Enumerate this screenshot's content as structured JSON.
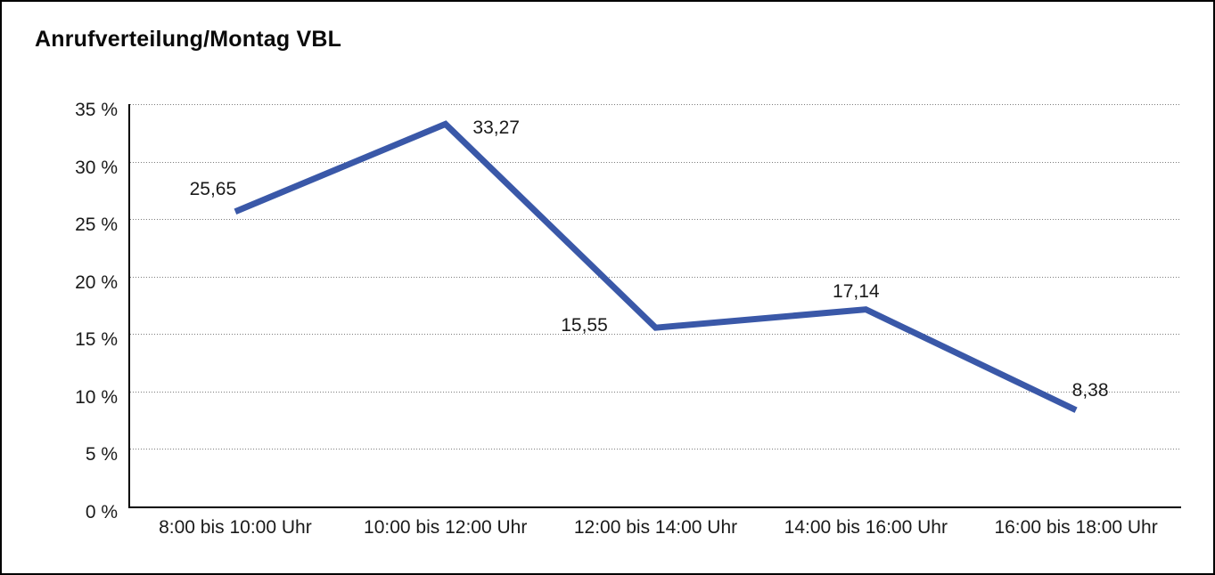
{
  "window": {
    "background_color": "#ffffff",
    "border_color": "#000000"
  },
  "chart_data": {
    "type": "line",
    "title": "Anrufverteilung/Montag VBL",
    "categories": [
      "8:00 bis 10:00 Uhr",
      "10:00 bis 12:00 Uhr",
      "12:00 bis 14:00 Uhr",
      "14:00 bis 16:00 Uhr",
      "16:00 bis 18:00 Uhr"
    ],
    "values": [
      25.65,
      33.27,
      15.55,
      17.14,
      8.38
    ],
    "data_labels": [
      "25,65",
      "33,27",
      "15,55",
      "17,14",
      "8,38"
    ],
    "y_tick_values": [
      0,
      5,
      10,
      15,
      20,
      25,
      30,
      35
    ],
    "y_tick_labels": [
      "0 %",
      "5 %",
      "10 %",
      "15 %",
      "20 %",
      "25 %",
      "30 %",
      "35 %"
    ],
    "ylim": [
      0,
      35
    ],
    "xlabel": "",
    "ylabel": "",
    "legend": "none",
    "grid": "horizontal-dotted",
    "line_color": "#3A58A8",
    "gridline_color": "#7c7c7c",
    "axis_color": "#000000",
    "text_color": "#1a1a1a"
  }
}
